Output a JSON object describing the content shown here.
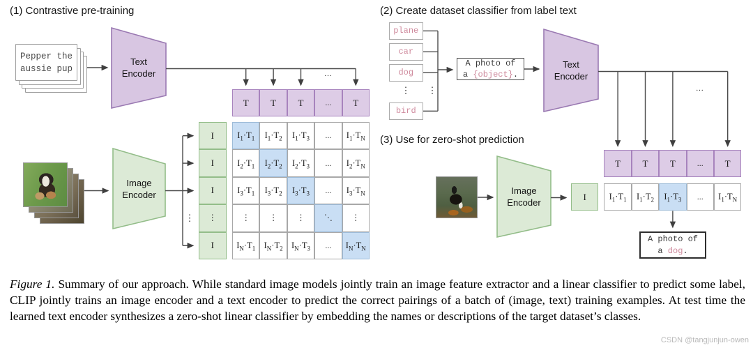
{
  "panel1": {
    "title": "(1) Contrastive pre-training",
    "text_cards": {
      "front_text": "Pepper the\naussie pup"
    },
    "text_encoder_label": "Text\nEncoder",
    "image_encoder_label": "Image\nEncoder",
    "trunk_ellipsis": "...",
    "branch_vdots": "⋮",
    "t_row": [
      {
        "b": "T",
        "s": "1"
      },
      {
        "b": "T",
        "s": "2"
      },
      {
        "b": "T",
        "s": "3"
      },
      {
        "t": "..."
      },
      {
        "b": "T",
        "s": "N"
      }
    ],
    "i_col": [
      {
        "b": "I",
        "s": "1"
      },
      {
        "b": "I",
        "s": "2"
      },
      {
        "b": "I",
        "s": "3"
      },
      {
        "t": "⋮"
      },
      {
        "b": "I",
        "s": "N"
      }
    ],
    "matrix": [
      [
        {
          "a": "I",
          "as": "1",
          "b": "T",
          "bs": "1",
          "hl": true
        },
        {
          "a": "I",
          "as": "1",
          "b": "T",
          "bs": "2"
        },
        {
          "a": "I",
          "as": "1",
          "b": "T",
          "bs": "3"
        },
        {
          "t": "..."
        },
        {
          "a": "I",
          "as": "1",
          "b": "T",
          "bs": "N"
        }
      ],
      [
        {
          "a": "I",
          "as": "2",
          "b": "T",
          "bs": "1"
        },
        {
          "a": "I",
          "as": "2",
          "b": "T",
          "bs": "2",
          "hl": true
        },
        {
          "a": "I",
          "as": "2",
          "b": "T",
          "bs": "3"
        },
        {
          "t": "..."
        },
        {
          "a": "I",
          "as": "2",
          "b": "T",
          "bs": "N"
        }
      ],
      [
        {
          "a": "I",
          "as": "3",
          "b": "T",
          "bs": "1"
        },
        {
          "a": "I",
          "as": "3",
          "b": "T",
          "bs": "2"
        },
        {
          "a": "I",
          "as": "3",
          "b": "T",
          "bs": "3",
          "hl": true
        },
        {
          "t": "..."
        },
        {
          "a": "I",
          "as": "3",
          "b": "T",
          "bs": "N"
        }
      ],
      [
        {
          "t": "⋮"
        },
        {
          "t": "⋮"
        },
        {
          "t": "⋮"
        },
        {
          "t": "⋱",
          "hl": true
        },
        {
          "t": "⋮"
        }
      ],
      [
        {
          "a": "I",
          "as": "N",
          "b": "T",
          "bs": "1"
        },
        {
          "a": "I",
          "as": "N",
          "b": "T",
          "bs": "2"
        },
        {
          "a": "I",
          "as": "N",
          "b": "T",
          "bs": "3"
        },
        {
          "t": "..."
        },
        {
          "a": "I",
          "as": "N",
          "b": "T",
          "bs": "N",
          "hl": true
        }
      ]
    ]
  },
  "panel2": {
    "title": "(2) Create dataset classifier from label text",
    "labels": [
      "plane",
      "car",
      "dog",
      "bird"
    ],
    "vdots": "⋮",
    "prompt": {
      "line1": "A photo of",
      "prefix": "a ",
      "object": "{object}",
      "suffix": "."
    },
    "text_encoder_label": "Text\nEncoder",
    "trunk_ellipsis": "...",
    "t_row": [
      {
        "b": "T",
        "s": "1"
      },
      {
        "b": "T",
        "s": "2"
      },
      {
        "b": "T",
        "s": "3"
      },
      {
        "t": "..."
      },
      {
        "b": "T",
        "s": "N"
      }
    ]
  },
  "panel3": {
    "title": "(3) Use for zero-shot prediction",
    "image_encoder_label": "Image\nEncoder",
    "i_cell": {
      "b": "I",
      "s": "1"
    },
    "row": [
      {
        "a": "I",
        "as": "1",
        "b": "T",
        "bs": "1"
      },
      {
        "a": "I",
        "as": "1",
        "b": "T",
        "bs": "2"
      },
      {
        "a": "I",
        "as": "1",
        "b": "T",
        "bs": "3",
        "hl": true
      },
      {
        "t": "..."
      },
      {
        "a": "I",
        "as": "1",
        "b": "T",
        "bs": "N"
      }
    ],
    "result": {
      "line1": "A photo of",
      "prefix": "a ",
      "object": "dog",
      "suffix": "."
    }
  },
  "caption": {
    "label": "Figure 1.",
    "body": " Summary of our approach. While standard image models jointly train an image feature extractor and a linear classifier to predict some label, CLIP jointly trains an image encoder and a text encoder to predict the correct pairings of a batch of (image, text) training examples. At test time the learned text encoder synthesizes a zero-shot linear classifier by embedding the names or descriptions of the target dataset’s classes."
  },
  "watermark": "CSDN @tangjunjun-owen",
  "colors": {
    "purple_fill": "#d8c6e2",
    "purple_border": "#9a79b2",
    "purple_cell_fill": "#ddcce6",
    "purple_cell_border": "#a783bd",
    "green_fill": "#dcead6",
    "green_border": "#93bd89",
    "blue_fill": "#c9def4",
    "blue_border": "#9dbbd8",
    "gray_cell_border": "#a8a8a8",
    "pink_text": "#cf8a9d",
    "line": "#4a4a4a"
  }
}
